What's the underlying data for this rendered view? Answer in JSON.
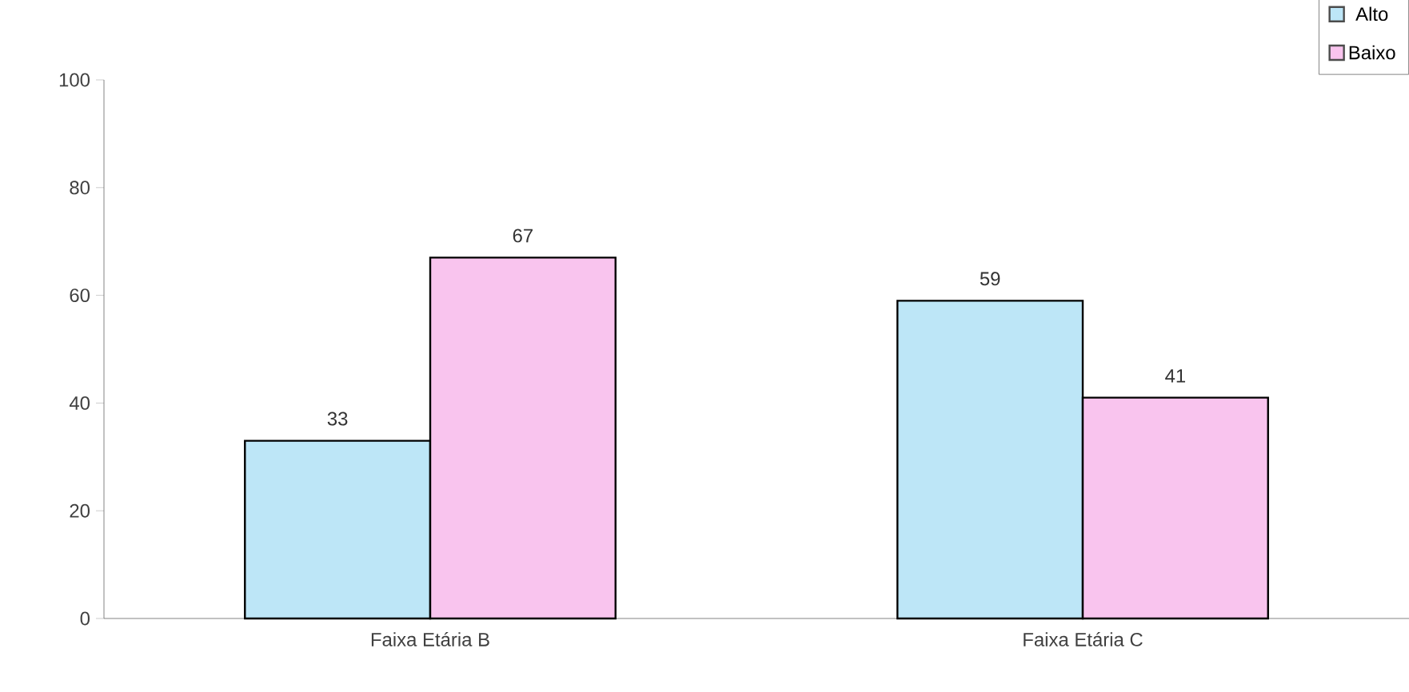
{
  "chart_data": {
    "type": "bar",
    "categories": [
      "Faixa Etária B",
      "Faixa Etária C"
    ],
    "series": [
      {
        "name": "Alto",
        "color": "#bde6f7",
        "values": [
          33,
          59
        ]
      },
      {
        "name": "Baixo",
        "color": "#f9c4ee",
        "values": [
          67,
          41
        ]
      }
    ],
    "ylim": [
      0,
      100
    ],
    "yticks": [
      0,
      20,
      40,
      60,
      80,
      100
    ],
    "data_labels": true,
    "legend": "top right",
    "grid": false
  }
}
